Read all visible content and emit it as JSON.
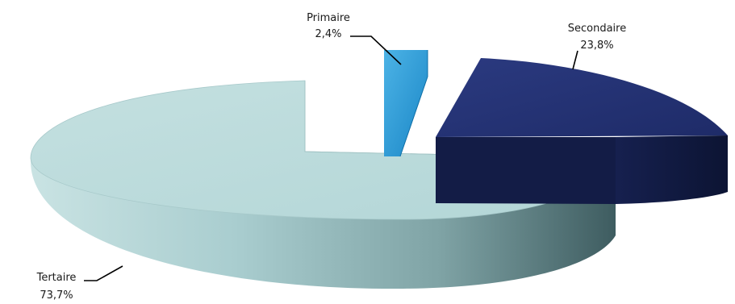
{
  "chart_data": {
    "type": "pie",
    "style": "3d-exploded",
    "categories": [
      "Primaire",
      "Secondaire",
      "Tertaire"
    ],
    "values": [
      2.4,
      23.8,
      73.7
    ],
    "value_labels": [
      "2,4%",
      "23,8%",
      "73,7%"
    ],
    "unit": "%",
    "colors": {
      "Primaire": "#2b9ad6",
      "Secondaire": "#1f2d6e",
      "Tertaire": "#b9dadb"
    },
    "legend": "none",
    "data_labels": "outside-with-leader-lines"
  }
}
